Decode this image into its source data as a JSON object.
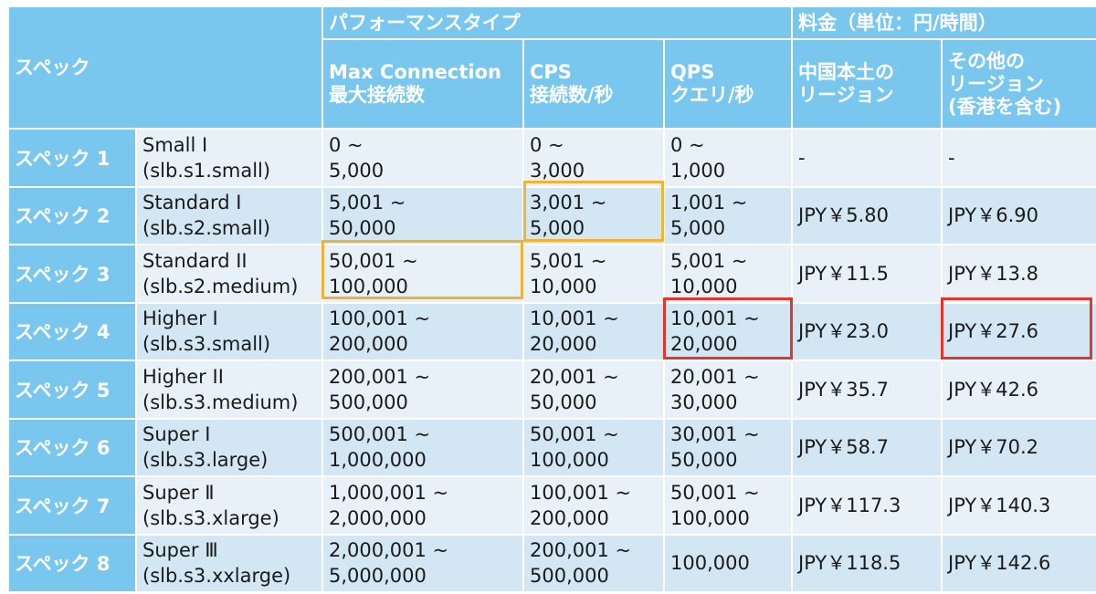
{
  "header": {
    "spec_label": "スペック",
    "performance_type": "パフォーマンスタイプ",
    "price_unit": "料金（単位：円/時間）",
    "max_connection": [
      "Max Connection",
      "最大接続数"
    ],
    "cps": [
      "CPS",
      "接続数/秒"
    ],
    "qps": [
      "QPS",
      "クエリ/秒"
    ],
    "mainland": [
      "中国本土の",
      "リージョン"
    ],
    "other_regions": [
      "その他の",
      "リージョン",
      "(香港を含む)"
    ]
  },
  "rows": [
    {
      "spec": "スペック 1",
      "name": [
        "Small I",
        "(slb.s1.small)"
      ],
      "maxconn": [
        "0 ~",
        "5,000"
      ],
      "cps": [
        "0 ~",
        "3,000"
      ],
      "qps": [
        "0 ~",
        "1,000"
      ],
      "price_cn": "-",
      "price_other": "-"
    },
    {
      "spec": "スペック 2",
      "name": [
        "Standard I",
        "(slb.s2.small)"
      ],
      "maxconn": [
        "5,001 ~",
        "50,000"
      ],
      "cps": [
        "3,001 ~",
        "5,000"
      ],
      "qps": [
        "1,001 ~",
        "5,000"
      ],
      "price_cn": "JPY￥5.80",
      "price_other": "JPY￥6.90"
    },
    {
      "spec": "スペック 3",
      "name": [
        "Standard II",
        "(slb.s2.medium)"
      ],
      "maxconn": [
        "50,001 ~",
        "100,000"
      ],
      "cps": [
        "5,001 ~",
        "10,000"
      ],
      "qps": [
        "5,001 ~",
        "10,000"
      ],
      "price_cn": "JPY￥11.5",
      "price_other": "JPY￥13.8"
    },
    {
      "spec": "スペック 4",
      "name": [
        "Higher I",
        "(slb.s3.small)"
      ],
      "maxconn": [
        "100,001 ~",
        "200,000"
      ],
      "cps": [
        "10,001 ~",
        "20,000"
      ],
      "qps": [
        "10,001 ~",
        "20,000"
      ],
      "price_cn": "JPY￥23.0",
      "price_other": "JPY￥27.6"
    },
    {
      "spec": "スペック 5",
      "name": [
        "Higher II",
        "(slb.s3.medium)"
      ],
      "maxconn": [
        "200,001 ~",
        "500,000"
      ],
      "cps": [
        "20,001 ~",
        "50,000"
      ],
      "qps": [
        "20,001 ~",
        "30,000"
      ],
      "price_cn": "JPY￥35.7",
      "price_other": "JPY￥42.6"
    },
    {
      "spec": "スペック 6",
      "name": [
        "Super I",
        "(slb.s3.large)"
      ],
      "maxconn": [
        "500,001 ~",
        "1,000,000"
      ],
      "cps": [
        "50,001 ~",
        "100,000"
      ],
      "qps": [
        "30,001 ~",
        "50,000"
      ],
      "price_cn": "JPY￥58.7",
      "price_other": "JPY￥70.2"
    },
    {
      "spec": "スペック 7",
      "name": [
        "Super Ⅱ",
        "(slb.s3.xlarge)"
      ],
      "maxconn": [
        "1,000,001 ~",
        "2,000,000"
      ],
      "cps": [
        "100,001 ~",
        "200,000"
      ],
      "qps": [
        "50,001 ~",
        "100,000"
      ],
      "price_cn": "JPY￥117.3",
      "price_other": "JPY￥140.3"
    },
    {
      "spec": "スペック 8",
      "name": [
        "Super Ⅲ",
        "(slb.s3.xxlarge)"
      ],
      "maxconn": [
        "2,000,001 ~",
        "5,000,000"
      ],
      "cps": [
        "200,001 ~",
        "500,000"
      ],
      "qps": [
        "100,000"
      ],
      "price_cn": "JPY￥118.5",
      "price_other": "JPY￥142.6"
    }
  ],
  "colors": {
    "header_bg": "#79c7ee",
    "row_light": "#e8f1f8",
    "row_dark": "#d3e6f4",
    "highlight_orange": "#f2b233",
    "highlight_red": "#e0362b"
  }
}
